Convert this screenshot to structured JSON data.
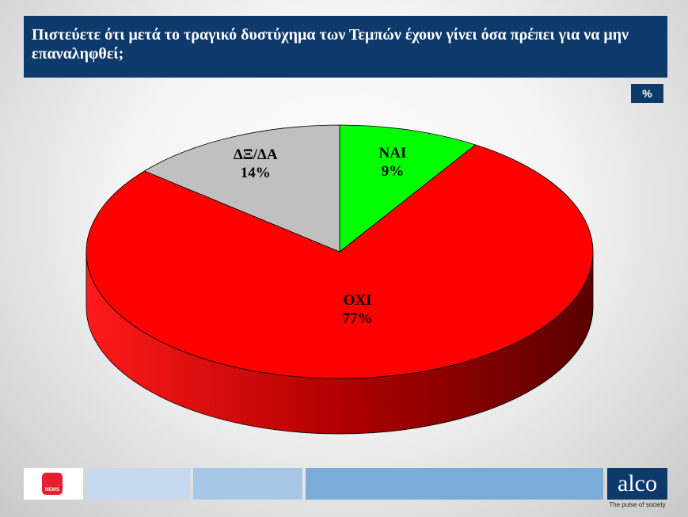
{
  "title": "Πιστεύετε ότι μετά το τραγικό δυστύχημα των Τεμπών έχουν γίνει όσα πρέπει για να μην επαναληφθεί;",
  "unit_badge": "%",
  "chart_data": {
    "type": "pie",
    "categories": [
      "ΝΑΙ",
      "ΟΧΙ",
      "ΔΞ/ΔΑ"
    ],
    "values": [
      9,
      77,
      14
    ],
    "value_labels": [
      "9%",
      "77%",
      "14%"
    ],
    "colors": [
      "#00ff00",
      "#ff0000",
      "#c0c0c0"
    ]
  },
  "footer": {
    "news_logo": "NEWS",
    "brand": "alco",
    "tagline": "The pulse of society"
  }
}
